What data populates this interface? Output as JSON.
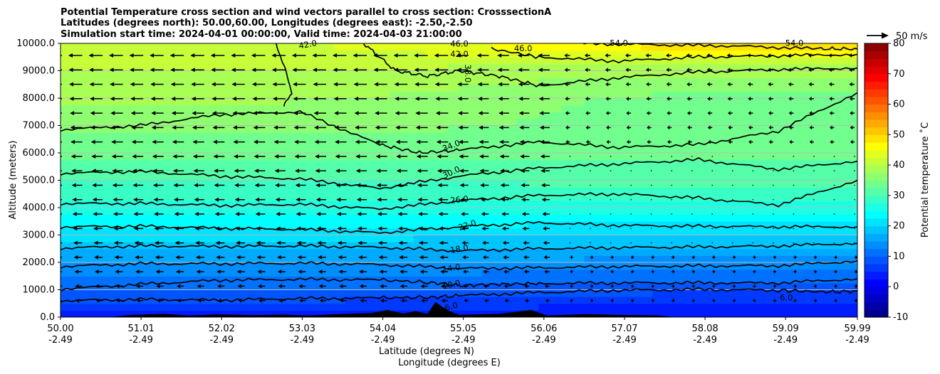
{
  "chart_data": {
    "type": "contour",
    "title_lines": [
      "Potential Temperature cross section and wind vectors parallel to cross section: CrosssectionA",
      "Latitudes (degrees north): 50.00,60.00, Longitudes (degrees east): -2.50,-2.50",
      "Simulation start time: 2024-04-01 00:00:00, Valid time: 2024-04-03 21:00:00"
    ],
    "xlabel_lines": [
      "Latitude (degrees N)",
      "Longitude (degrees E)"
    ],
    "ylabel": "Altitude (meters)",
    "x_ticks": [
      {
        "lat": "50.00",
        "lon": "-2.49"
      },
      {
        "lat": "51.01",
        "lon": "-2.49"
      },
      {
        "lat": "52.02",
        "lon": "-2.49"
      },
      {
        "lat": "53.03",
        "lon": "-2.49"
      },
      {
        "lat": "54.04",
        "lon": "-2.49"
      },
      {
        "lat": "55.05",
        "lon": "-2.49"
      },
      {
        "lat": "56.06",
        "lon": "-2.49"
      },
      {
        "lat": "57.07",
        "lon": "-2.49"
      },
      {
        "lat": "58.08",
        "lon": "-2.49"
      },
      {
        "lat": "59.09",
        "lon": "-2.49"
      },
      {
        "lat": "59.99",
        "lon": "-2.49"
      }
    ],
    "xlim": [
      50.0,
      59.99
    ],
    "ylim": [
      0,
      10000
    ],
    "y_ticks": [
      "0.0",
      "1000.0",
      "2000.0",
      "3000.0",
      "4000.0",
      "5000.0",
      "6000.0",
      "7000.0",
      "8000.0",
      "9000.0",
      "10000.0"
    ],
    "grid": "horizontal",
    "colorbar": {
      "label": "Potential temperature ˚C",
      "ticks": [
        "-10",
        "0",
        "10",
        "20",
        "30",
        "40",
        "50",
        "60",
        "70",
        "80"
      ],
      "range": [
        -10,
        80
      ],
      "colormap": "jet"
    },
    "quiver_key": "50 m/s",
    "contour_levels": [
      {
        "value": 6,
        "label": "6.0"
      },
      {
        "value": 10,
        "label": "10.0"
      },
      {
        "value": 14,
        "label": "14.0"
      },
      {
        "value": 18,
        "label": "18.0"
      },
      {
        "value": 22,
        "label": "22.0"
      },
      {
        "value": 26,
        "label": "26.0"
      },
      {
        "value": 30,
        "label": "30.0"
      },
      {
        "value": 34,
        "label": "34.0"
      },
      {
        "value": 38,
        "label": "38.0"
      },
      {
        "value": 42,
        "label": "42.0"
      },
      {
        "value": 46,
        "label": "46.0"
      },
      {
        "value": 54,
        "label": "54.0"
      }
    ],
    "contours": [
      {
        "level": 6,
        "points": [
          [
            50.0,
            600
          ],
          [
            51.0,
            650
          ],
          [
            52.0,
            620
          ],
          [
            53.0,
            680
          ],
          [
            54.0,
            700
          ],
          [
            54.7,
            730
          ],
          [
            55.0,
            780
          ],
          [
            56.0,
            900
          ],
          [
            57.0,
            980
          ],
          [
            58.0,
            1010
          ],
          [
            59.0,
            980
          ],
          [
            59.6,
            920
          ],
          [
            59.99,
            950
          ]
        ]
      },
      {
        "level": 10,
        "points": [
          [
            50.0,
            1020
          ],
          [
            51.0,
            1200
          ],
          [
            52.0,
            1350
          ],
          [
            53.0,
            1380
          ],
          [
            54.0,
            1360
          ],
          [
            54.7,
            1250
          ],
          [
            55.0,
            1150
          ],
          [
            55.5,
            1200
          ],
          [
            56.0,
            1230
          ],
          [
            57.0,
            1250
          ],
          [
            58.0,
            1250
          ],
          [
            59.0,
            1250
          ],
          [
            59.99,
            1400
          ]
        ]
      },
      {
        "level": 14,
        "points": [
          [
            50.0,
            1850
          ],
          [
            51.0,
            1950
          ],
          [
            52.0,
            1950
          ],
          [
            53.0,
            1970
          ],
          [
            54.0,
            1920
          ],
          [
            55.0,
            1780
          ],
          [
            56.0,
            1800
          ],
          [
            57.0,
            1850
          ],
          [
            58.0,
            1870
          ],
          [
            59.0,
            1880
          ],
          [
            59.99,
            2050
          ]
        ]
      },
      {
        "level": 18,
        "points": [
          [
            50.0,
            2520
          ],
          [
            51.0,
            2600
          ],
          [
            52.0,
            2580
          ],
          [
            53.0,
            2600
          ],
          [
            54.0,
            2550
          ],
          [
            55.0,
            2420
          ],
          [
            56.0,
            2500
          ],
          [
            57.0,
            2540
          ],
          [
            58.0,
            2560
          ],
          [
            59.0,
            2600
          ],
          [
            59.99,
            2700
          ]
        ]
      },
      {
        "level": 22,
        "points": [
          [
            50.0,
            3300
          ],
          [
            51.0,
            3320
          ],
          [
            52.0,
            3250
          ],
          [
            53.0,
            3200
          ],
          [
            54.0,
            3080
          ],
          [
            55.0,
            3300
          ],
          [
            56.0,
            3450
          ],
          [
            57.0,
            3350
          ],
          [
            58.0,
            3320
          ],
          [
            59.0,
            3300
          ],
          [
            59.99,
            3300
          ]
        ]
      },
      {
        "level": 26,
        "points": [
          [
            50.0,
            4150
          ],
          [
            51.0,
            4150
          ],
          [
            52.0,
            4080
          ],
          [
            53.0,
            4120
          ],
          [
            54.0,
            3950
          ],
          [
            55.0,
            4250
          ],
          [
            56.0,
            4450
          ],
          [
            57.0,
            4500
          ],
          [
            58.0,
            4350
          ],
          [
            59.0,
            4100
          ],
          [
            59.99,
            5000
          ]
        ]
      },
      {
        "level": 30,
        "points": [
          [
            50.0,
            5250
          ],
          [
            51.0,
            5320
          ],
          [
            52.0,
            5150
          ],
          [
            53.0,
            5050
          ],
          [
            54.0,
            4700
          ],
          [
            55.0,
            5150
          ],
          [
            56.0,
            5450
          ],
          [
            57.0,
            5600
          ],
          [
            58.0,
            5750
          ],
          [
            59.0,
            5400
          ],
          [
            59.99,
            5700
          ]
        ]
      },
      {
        "level": 34,
        "points": [
          [
            50.0,
            6850
          ],
          [
            51.0,
            7000
          ],
          [
            52.0,
            7400
          ],
          [
            53.0,
            7500
          ],
          [
            54.0,
            6300
          ],
          [
            54.5,
            6000
          ],
          [
            55.0,
            6100
          ],
          [
            56.0,
            6400
          ],
          [
            57.0,
            6200
          ],
          [
            58.0,
            6300
          ],
          [
            59.0,
            6800
          ],
          [
            59.99,
            8200
          ]
        ]
      },
      {
        "level": 38,
        "points": [
          [
            52.7,
            10000
          ],
          [
            52.8,
            9200
          ],
          [
            52.9,
            8200
          ],
          [
            52.8,
            7700
          ]
        ]
      },
      {
        "level": 42,
        "points": [
          [
            53.8,
            10000
          ],
          [
            54.2,
            9000
          ],
          [
            54.6,
            8800
          ],
          [
            55.0,
            9000
          ],
          [
            55.5,
            8800
          ],
          [
            56.0,
            8450
          ],
          [
            57.0,
            8750
          ],
          [
            58.0,
            8950
          ],
          [
            59.0,
            9050
          ],
          [
            59.99,
            9100
          ]
        ]
      },
      {
        "level": 46,
        "points": [
          [
            55.4,
            9800
          ],
          [
            56.0,
            9500
          ],
          [
            57.0,
            9350
          ],
          [
            58.0,
            9500
          ],
          [
            59.0,
            9550
          ],
          [
            59.99,
            9600
          ]
        ]
      },
      {
        "level": 54,
        "points": [
          [
            56.5,
            10000
          ],
          [
            57.5,
            9950
          ],
          [
            58.5,
            9900
          ],
          [
            59.5,
            9800
          ],
          [
            59.99,
            9800
          ]
        ]
      }
    ],
    "theta_profile": {
      "description_free": true,
      "altitude_m": [
        0,
        1000,
        2000,
        3000,
        4000,
        5000,
        6000,
        7000,
        8000,
        9000,
        10000
      ],
      "theta_west": [
        4,
        10,
        15,
        21,
        26,
        30,
        33,
        36,
        38,
        40,
        42
      ],
      "theta_east": [
        2,
        8,
        14,
        20,
        26,
        31,
        33,
        34,
        34,
        38,
        50
      ]
    },
    "wind_field": {
      "columns": 40,
      "rows": 18,
      "upper_west_speed_ms": 50,
      "east_low_speed_ms": 5
    }
  }
}
